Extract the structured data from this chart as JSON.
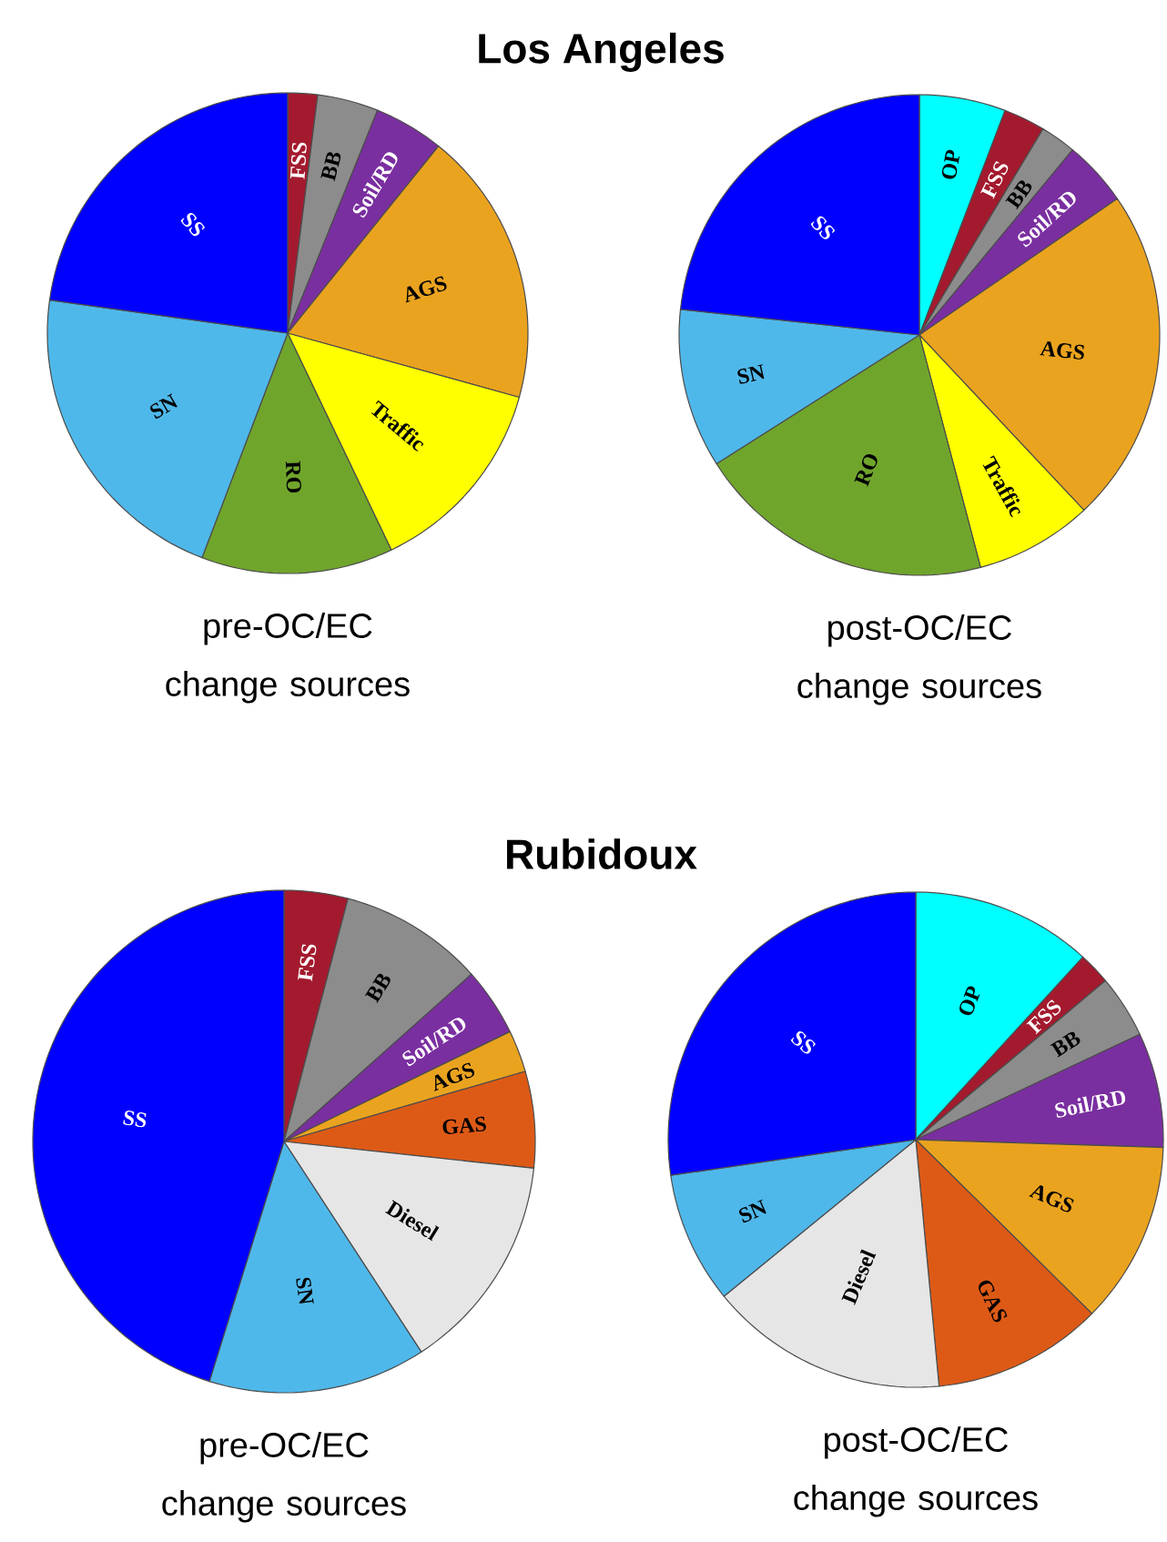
{
  "chart_data": [
    {
      "type": "pie",
      "title": "Los Angeles",
      "xlabel": "pre-OC/EC change sources",
      "categories": [
        "FSS",
        "BB",
        "Soil/RD",
        "AGS",
        "Traffic",
        "RO",
        "SN",
        "SS"
      ],
      "values": [
        2.0,
        4.1,
        4.7,
        18.5,
        13.6,
        12.9,
        21.4,
        22.8
      ],
      "colors": [
        "#a31a2e",
        "#8c8c8c",
        "#7a2fa0",
        "#eaa31f",
        "#ffff00",
        "#70a52c",
        "#4fb8ea",
        "#0000ff"
      ]
    },
    {
      "type": "pie",
      "xlabel": "post-OC/EC change sources",
      "categories": [
        "OP",
        "FSS",
        "BB",
        "Soil/RD",
        "AGS",
        "Traffic",
        "RO",
        "SN",
        "SS"
      ],
      "values": [
        5.8,
        2.8,
        2.4,
        4.4,
        22.6,
        7.9,
        20.1,
        10.7,
        23.3
      ],
      "colors": [
        "#00ffff",
        "#a31a2e",
        "#8c8c8c",
        "#7a2fa0",
        "#eaa31f",
        "#ffff00",
        "#70a52c",
        "#4fb8ea",
        "#0000ff"
      ]
    },
    {
      "type": "pie",
      "title": "Rubidoux",
      "xlabel": "pre-OC/EC change sources",
      "categories": [
        "FSS",
        "BB",
        "Soil/RD",
        "AGS",
        "GAS",
        "Diesel",
        "SN",
        "SS"
      ],
      "values": [
        4.1,
        9.3,
        4.4,
        2.7,
        6.2,
        14.1,
        14.0,
        45.2
      ],
      "colors": [
        "#a31a2e",
        "#8c8c8c",
        "#7a2fa0",
        "#eaa31f",
        "#dd5a16",
        "#e6e6e6",
        "#4fb8ea",
        "#0000ff"
      ]
    },
    {
      "type": "pie",
      "xlabel": "post-OC/EC change sources",
      "categories": [
        "OP",
        "FSS",
        "BB",
        "Soil/RD",
        "AGS",
        "GAS",
        "Diesel",
        "SN",
        "SS"
      ],
      "values": [
        11.8,
        2.1,
        4.1,
        7.5,
        11.9,
        11.1,
        15.6,
        8.6,
        27.3
      ],
      "colors": [
        "#00ffff",
        "#a31a2e",
        "#8c8c8c",
        "#7a2fa0",
        "#eaa31f",
        "#dd5a16",
        "#e6e6e6",
        "#4fb8ea",
        "#0000ff"
      ]
    }
  ]
}
